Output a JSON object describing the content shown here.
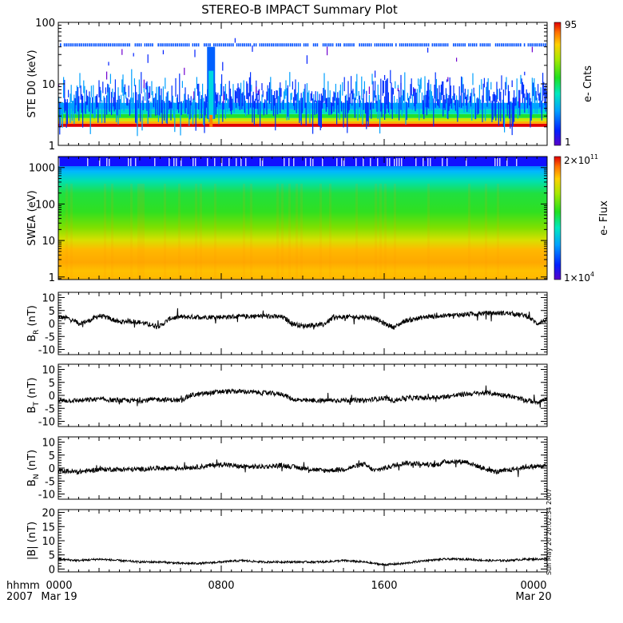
{
  "chart_data": {
    "title": "STEREO-B IMPACT Summary Plot",
    "x_axis": {
      "ticks": [
        "0000",
        "0800",
        "1600",
        "0000"
      ],
      "dates": [
        "Mar 19",
        "Mar 20"
      ],
      "corner_labels": [
        "hhmm",
        "2007"
      ]
    },
    "timestamp_label": "Sun May 20 20:02:34 2007",
    "panels": [
      {
        "id": "ste",
        "type": "heatmap",
        "ylabel": "STE D0 (keV)",
        "yscale": "log",
        "ylim": [
          1,
          100
        ],
        "yticks": [
          "1",
          "10",
          "100"
        ],
        "colorbar": {
          "label": "e- Cnts",
          "max_label": "95",
          "min_label": "1"
        },
        "features": {
          "lower_energy_edge_keV": 2.0,
          "band_top_keV": 4.5,
          "spike_hour": 7.5,
          "spike_top_keV": 40,
          "line_keV": 43
        }
      },
      {
        "id": "swea",
        "type": "heatmap",
        "ylabel": "SWEA (eV)",
        "yscale": "log",
        "ylim": [
          1,
          2000
        ],
        "yticks": [
          "1",
          "10",
          "100",
          "1000"
        ],
        "colorbar": {
          "label": "e- Flux",
          "max_label": "2×10",
          "max_exp": "11",
          "min_label": "1×10",
          "min_exp": "4"
        }
      },
      {
        "id": "br",
        "type": "line",
        "ylabel_main": "B",
        "ylabel_sub": "R",
        "ylabel_unit": " (nT)",
        "ylim": [
          -12,
          12
        ],
        "yticks": [
          "-10",
          "-5",
          "0",
          "5",
          "10"
        ],
        "x_hours": [
          0,
          0.5,
          1,
          1.5,
          2,
          2.5,
          3,
          3.5,
          4,
          4.5,
          5,
          5.5,
          6,
          6.5,
          7,
          8,
          9,
          10,
          11,
          11.5,
          12,
          12.5,
          13,
          13.5,
          14,
          14.5,
          15,
          15.5,
          16,
          16.5,
          17,
          18,
          19,
          20,
          21,
          22,
          23,
          23.5,
          24
        ],
        "values": [
          2.5,
          2,
          0,
          1,
          3,
          2,
          0.5,
          1,
          0.5,
          -0.5,
          -1,
          2,
          2.5,
          2.5,
          2.5,
          2.5,
          2.7,
          2.9,
          2.5,
          0,
          -1,
          -0.5,
          -0.5,
          2.2,
          2.5,
          2.5,
          2.5,
          2.2,
          0,
          -1.5,
          1,
          2.5,
          3,
          3.5,
          4,
          4,
          3,
          0,
          1.5
        ]
      },
      {
        "id": "bt",
        "type": "line",
        "ylabel_main": "B",
        "ylabel_sub": "T",
        "ylabel_unit": " (nT)",
        "ylim": [
          -12,
          12
        ],
        "yticks": [
          "-10",
          "-5",
          "0",
          "5",
          "10"
        ],
        "x_hours": [
          0,
          1,
          2,
          3,
          4,
          5,
          6,
          6.5,
          7,
          8,
          9,
          10,
          11,
          11.5,
          12,
          13,
          14,
          15,
          16,
          16.5,
          17,
          18,
          19,
          20,
          21,
          22,
          22.5,
          23,
          23.5,
          24
        ],
        "values": [
          -2,
          -2,
          -1.5,
          -2,
          -2,
          -1.5,
          -2,
          0,
          0.5,
          1.5,
          1.5,
          1,
          0.5,
          -1.5,
          -2,
          -2,
          -1.8,
          -2,
          -1,
          -2,
          -1,
          -1,
          -0.5,
          0.5,
          1,
          0,
          -1,
          -2,
          -2.5,
          -1.5
        ]
      },
      {
        "id": "bn",
        "type": "line",
        "ylabel_main": "B",
        "ylabel_sub": "N",
        "ylabel_unit": " (nT)",
        "ylim": [
          -12,
          12
        ],
        "yticks": [
          "-10",
          "-5",
          "0",
          "5",
          "10"
        ],
        "x_hours": [
          0,
          1,
          2,
          3,
          4,
          5,
          6,
          7,
          8,
          9,
          10,
          11,
          12,
          13,
          14,
          15,
          15.5,
          16,
          17,
          18,
          18.5,
          19,
          20,
          21,
          21.5,
          22,
          23,
          24
        ],
        "values": [
          -1,
          -1.5,
          -0.5,
          -0.5,
          -0.5,
          0,
          0,
          0.5,
          1.5,
          0.5,
          0.5,
          1,
          0,
          -1,
          -0.5,
          1.5,
          -1,
          0,
          2,
          1.5,
          1,
          2.5,
          2.5,
          -0.5,
          -1.5,
          -1,
          0.5,
          0.8
        ]
      },
      {
        "id": "bmag",
        "type": "line",
        "ylabel": "|B| (nT)",
        "ylim": [
          -1,
          21
        ],
        "yticks": [
          "0",
          "5",
          "10",
          "15",
          "20"
        ],
        "x_hours": [
          0,
          1,
          2,
          3,
          4,
          5,
          6,
          7,
          8,
          9,
          10,
          11,
          12,
          13,
          14,
          15,
          16,
          17,
          18,
          19,
          20,
          21,
          22,
          23,
          24
        ],
        "values": [
          3.5,
          3,
          3.5,
          3,
          2.5,
          2.5,
          2,
          2,
          2.5,
          3,
          2.5,
          2.5,
          2.5,
          2.5,
          3,
          2.5,
          1.5,
          2,
          3,
          3.5,
          3.5,
          3,
          3,
          3.5,
          3.5
        ]
      }
    ]
  }
}
